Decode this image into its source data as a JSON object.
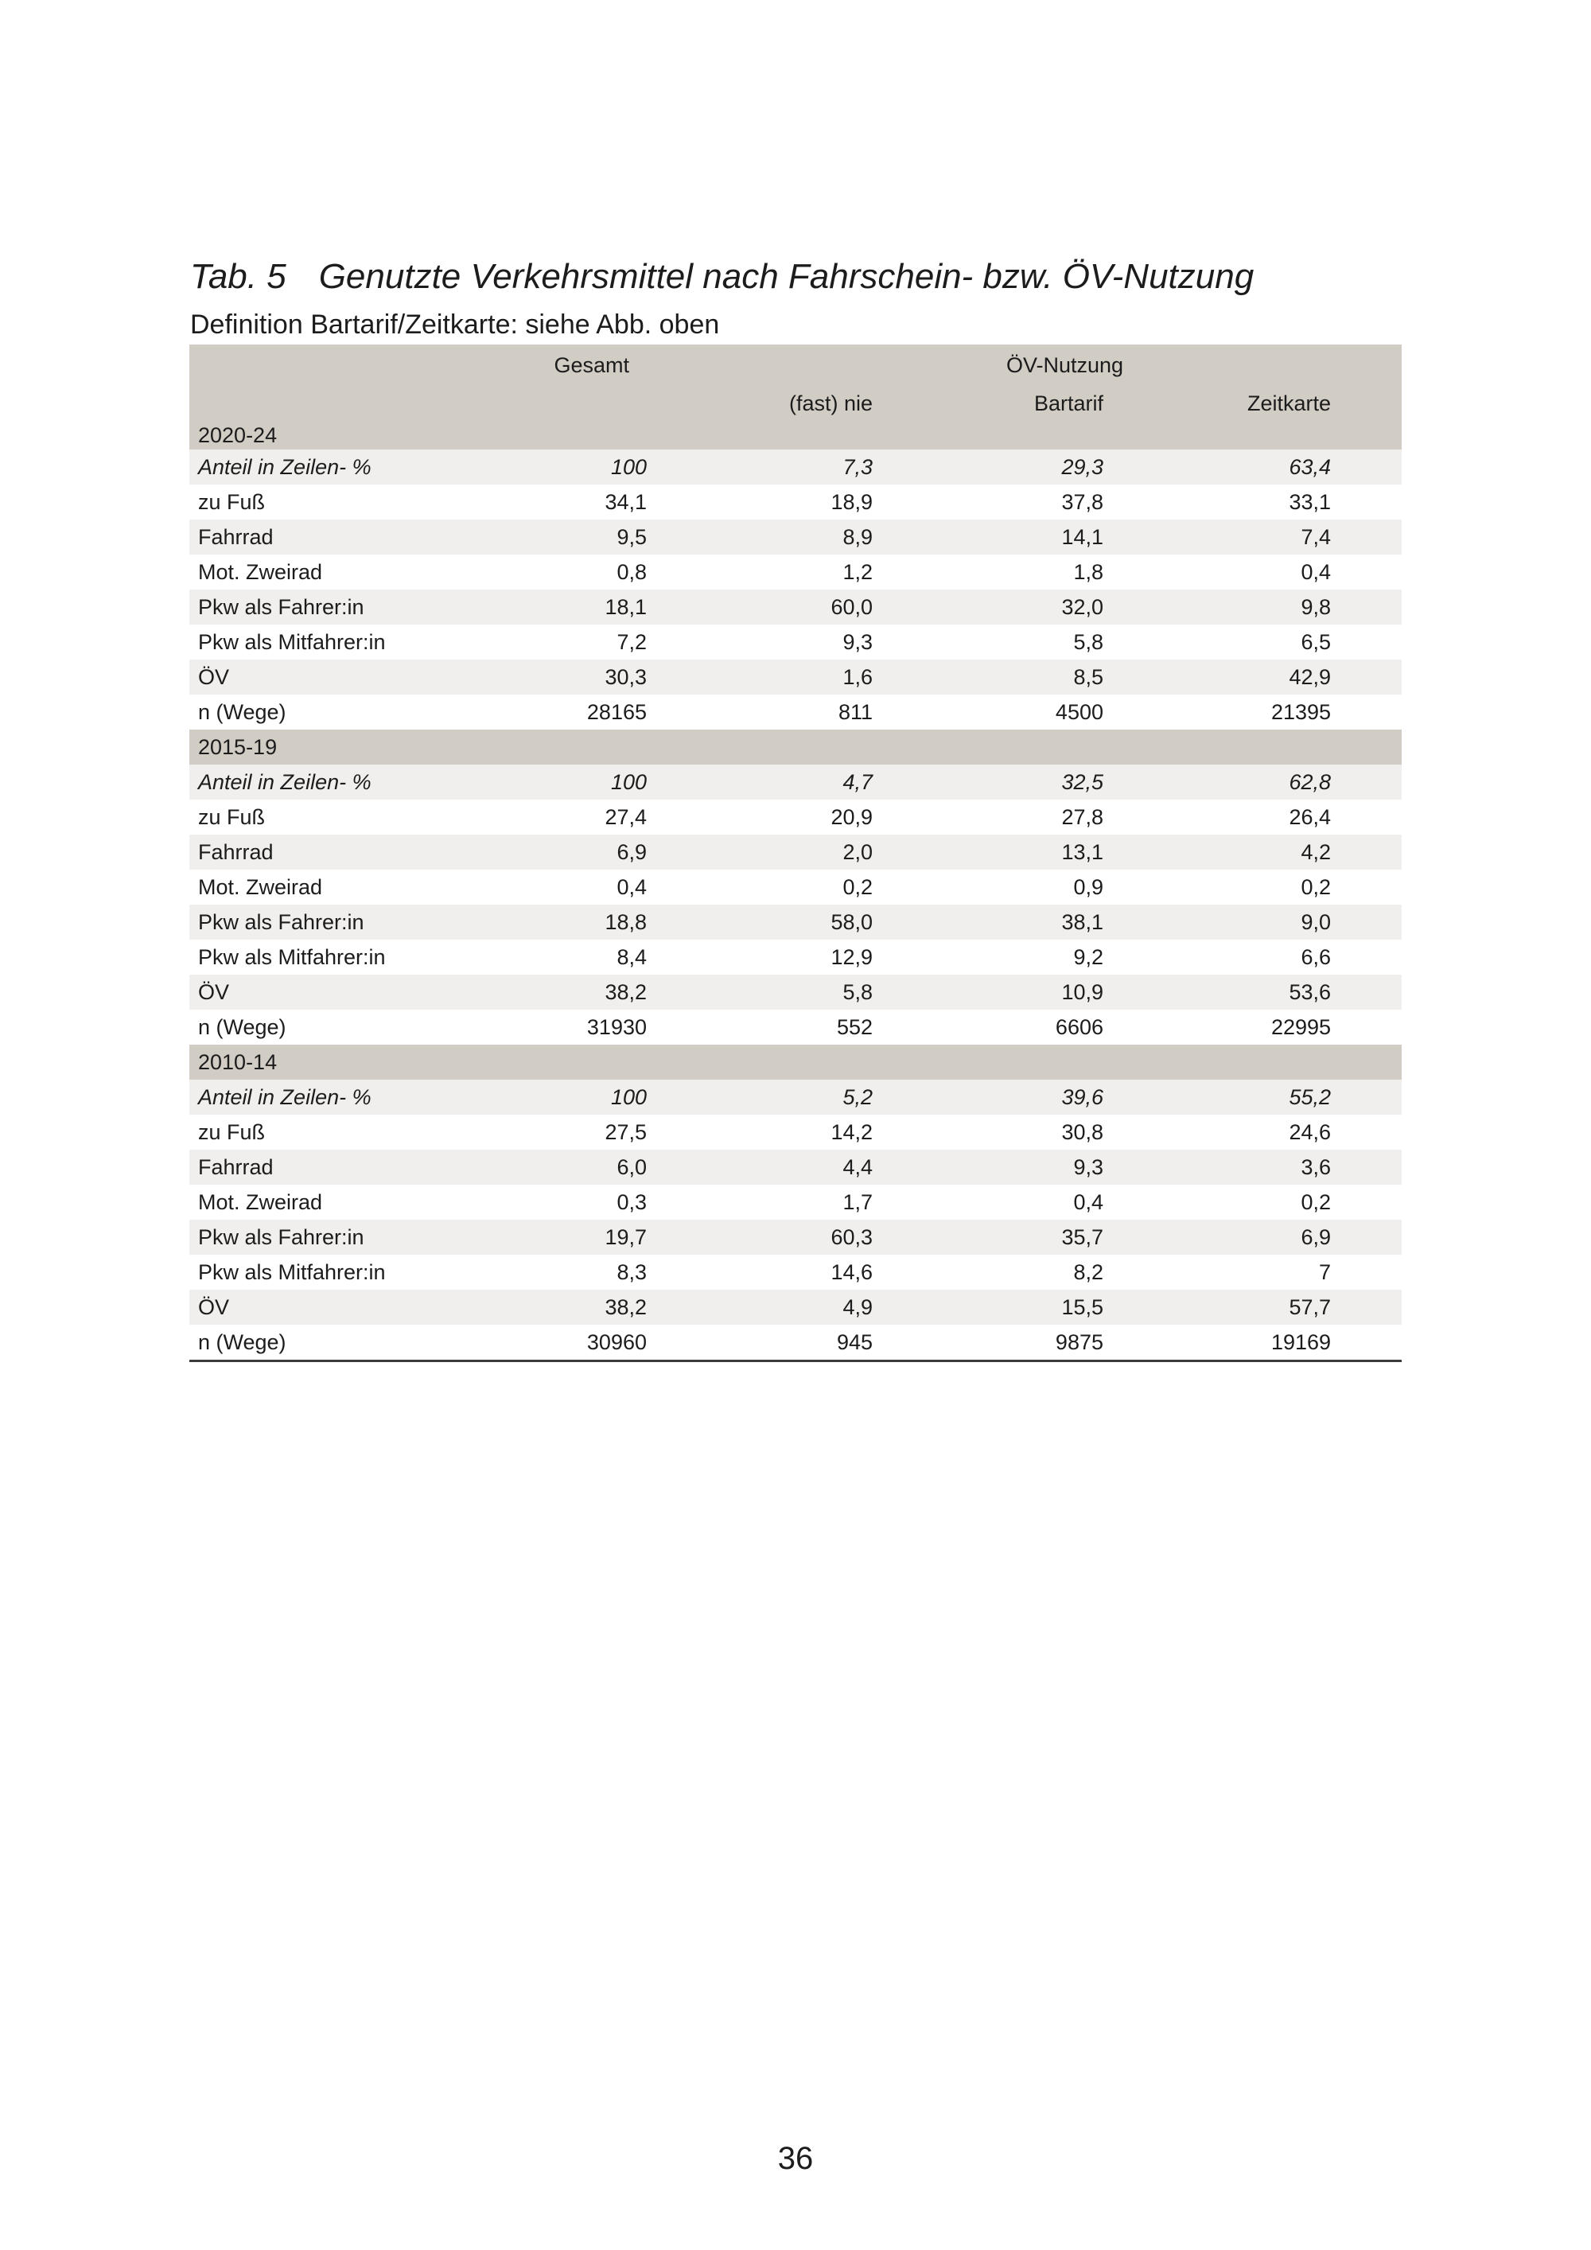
{
  "caption": {
    "tag": "Tab. 5",
    "title": "Genutzte Verkehrsmittel nach Fahrschein- bzw. ÖV-Nutzung",
    "subtitle": "Definition Bartarif/Zeitkarte: siehe Abb. oben"
  },
  "page": {
    "number": "36"
  },
  "colors": {
    "header_band": "#d1ccc4",
    "stripe_row": "#f0efed",
    "bottom_rule": "#3b3b3b",
    "text": "#1c1c1c"
  },
  "table": {
    "header": {
      "gesamt": "Gesamt",
      "group": "ÖV-Nutzung",
      "sub": [
        "(fast) nie",
        "Bartarif",
        "Zeitkarte"
      ]
    },
    "sections": [
      {
        "period": "2020-24",
        "rows": [
          {
            "label": "Anteil in Zeilen- %",
            "italic": true,
            "values": [
              "100",
              "7,3",
              "29,3",
              "63,4"
            ]
          },
          {
            "label": "zu Fuß",
            "values": [
              "34,1",
              "18,9",
              "37,8",
              "33,1"
            ]
          },
          {
            "label": "Fahrrad",
            "values": [
              "9,5",
              "8,9",
              "14,1",
              "7,4"
            ]
          },
          {
            "label": "Mot. Zweirad",
            "values": [
              "0,8",
              "1,2",
              "1,8",
              "0,4"
            ]
          },
          {
            "label": "Pkw als Fahrer:in",
            "values": [
              "18,1",
              "60,0",
              "32,0",
              "9,8"
            ]
          },
          {
            "label": "Pkw als Mitfahrer:in",
            "values": [
              "7,2",
              "9,3",
              "5,8",
              "6,5"
            ]
          },
          {
            "label": "ÖV",
            "values": [
              "30,3",
              "1,6",
              "8,5",
              "42,9"
            ]
          },
          {
            "label": "n (Wege)",
            "values": [
              "28165",
              "811",
              "4500",
              "21395"
            ]
          }
        ]
      },
      {
        "period": "2015-19",
        "rows": [
          {
            "label": "Anteil in Zeilen- %",
            "italic": true,
            "values": [
              "100",
              "4,7",
              "32,5",
              "62,8"
            ]
          },
          {
            "label": "zu Fuß",
            "values": [
              "27,4",
              "20,9",
              "27,8",
              "26,4"
            ]
          },
          {
            "label": "Fahrrad",
            "values": [
              "6,9",
              "2,0",
              "13,1",
              "4,2"
            ]
          },
          {
            "label": "Mot. Zweirad",
            "values": [
              "0,4",
              "0,2",
              "0,9",
              "0,2"
            ]
          },
          {
            "label": "Pkw als Fahrer:in",
            "values": [
              "18,8",
              "58,0",
              "38,1",
              "9,0"
            ]
          },
          {
            "label": "Pkw als Mitfahrer:in",
            "values": [
              "8,4",
              "12,9",
              "9,2",
              "6,6"
            ]
          },
          {
            "label": "ÖV",
            "values": [
              "38,2",
              "5,8",
              "10,9",
              "53,6"
            ]
          },
          {
            "label": "n (Wege)",
            "values": [
              "31930",
              "552",
              "6606",
              "22995"
            ]
          }
        ]
      },
      {
        "period": "2010-14",
        "rows": [
          {
            "label": "Anteil in Zeilen- %",
            "italic": true,
            "values": [
              "100",
              "5,2",
              "39,6",
              "55,2"
            ]
          },
          {
            "label": "zu Fuß",
            "values": [
              "27,5",
              "14,2",
              "30,8",
              "24,6"
            ]
          },
          {
            "label": "Fahrrad",
            "values": [
              "6,0",
              "4,4",
              "9,3",
              "3,6"
            ]
          },
          {
            "label": "Mot. Zweirad",
            "values": [
              "0,3",
              "1,7",
              "0,4",
              "0,2"
            ]
          },
          {
            "label": "Pkw als Fahrer:in",
            "values": [
              "19,7",
              "60,3",
              "35,7",
              "6,9"
            ]
          },
          {
            "label": "Pkw als Mitfahrer:in",
            "values": [
              "8,3",
              "14,6",
              "8,2",
              "7"
            ]
          },
          {
            "label": "ÖV",
            "values": [
              "38,2",
              "4,9",
              "15,5",
              "57,7"
            ]
          },
          {
            "label": "n (Wege)",
            "values": [
              "30960",
              "945",
              "9875",
              "19169"
            ]
          }
        ]
      }
    ]
  }
}
